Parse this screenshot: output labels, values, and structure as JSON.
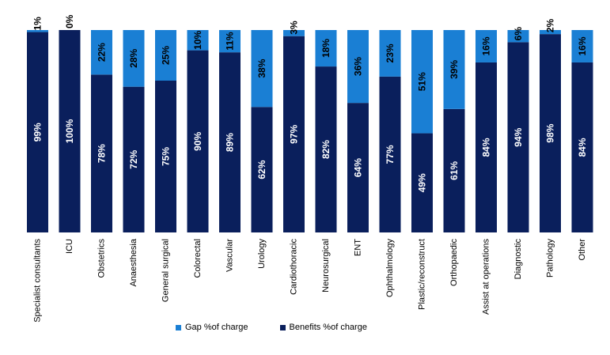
{
  "chart_data": {
    "type": "bar",
    "stacked": true,
    "categories": [
      "Specialist consultants",
      "ICU",
      "Obstetrics",
      "Anaesthesia",
      "General surgical",
      "Colorectal",
      "Vascular",
      "Urology",
      "Cardiothoracic",
      "Neurosurgical",
      "ENT",
      "Ophthalmology",
      "Plastic/reconstruct",
      "Orthopaedic",
      "Assist at operations",
      "Diagnostic",
      "Pathology",
      "Other"
    ],
    "series": [
      {
        "name": "Benefits %of charge",
        "color": "#0a1f5c",
        "values": [
          99,
          100,
          78,
          72,
          75,
          90,
          89,
          62,
          97,
          82,
          64,
          77,
          49,
          61,
          84,
          94,
          98,
          84
        ],
        "labels": [
          "99%",
          "100%",
          "78%",
          "72%",
          "75%",
          "90%",
          "89%",
          "62%",
          "97%",
          "82%",
          "64%",
          "77%",
          "49%",
          "61%",
          "84%",
          "94%",
          "98%",
          "84%"
        ]
      },
      {
        "name": "Gap %of charge",
        "color": "#1a7fd4",
        "values": [
          1,
          0,
          22,
          28,
          25,
          10,
          11,
          38,
          3,
          18,
          36,
          23,
          51,
          39,
          16,
          6,
          2,
          16
        ],
        "labels": [
          "1%",
          "0%",
          "22%",
          "28%",
          "25%",
          "10%",
          "11%",
          "38%",
          "3%",
          "18%",
          "36%",
          "23%",
          "51%",
          "39%",
          "16%",
          "6%",
          "2%",
          "16%"
        ]
      }
    ],
    "legend_order": [
      "Gap %of charge",
      "Benefits %of charge"
    ],
    "ylim": [
      0,
      100
    ],
    "grid": false,
    "legend_position": "bottom"
  }
}
